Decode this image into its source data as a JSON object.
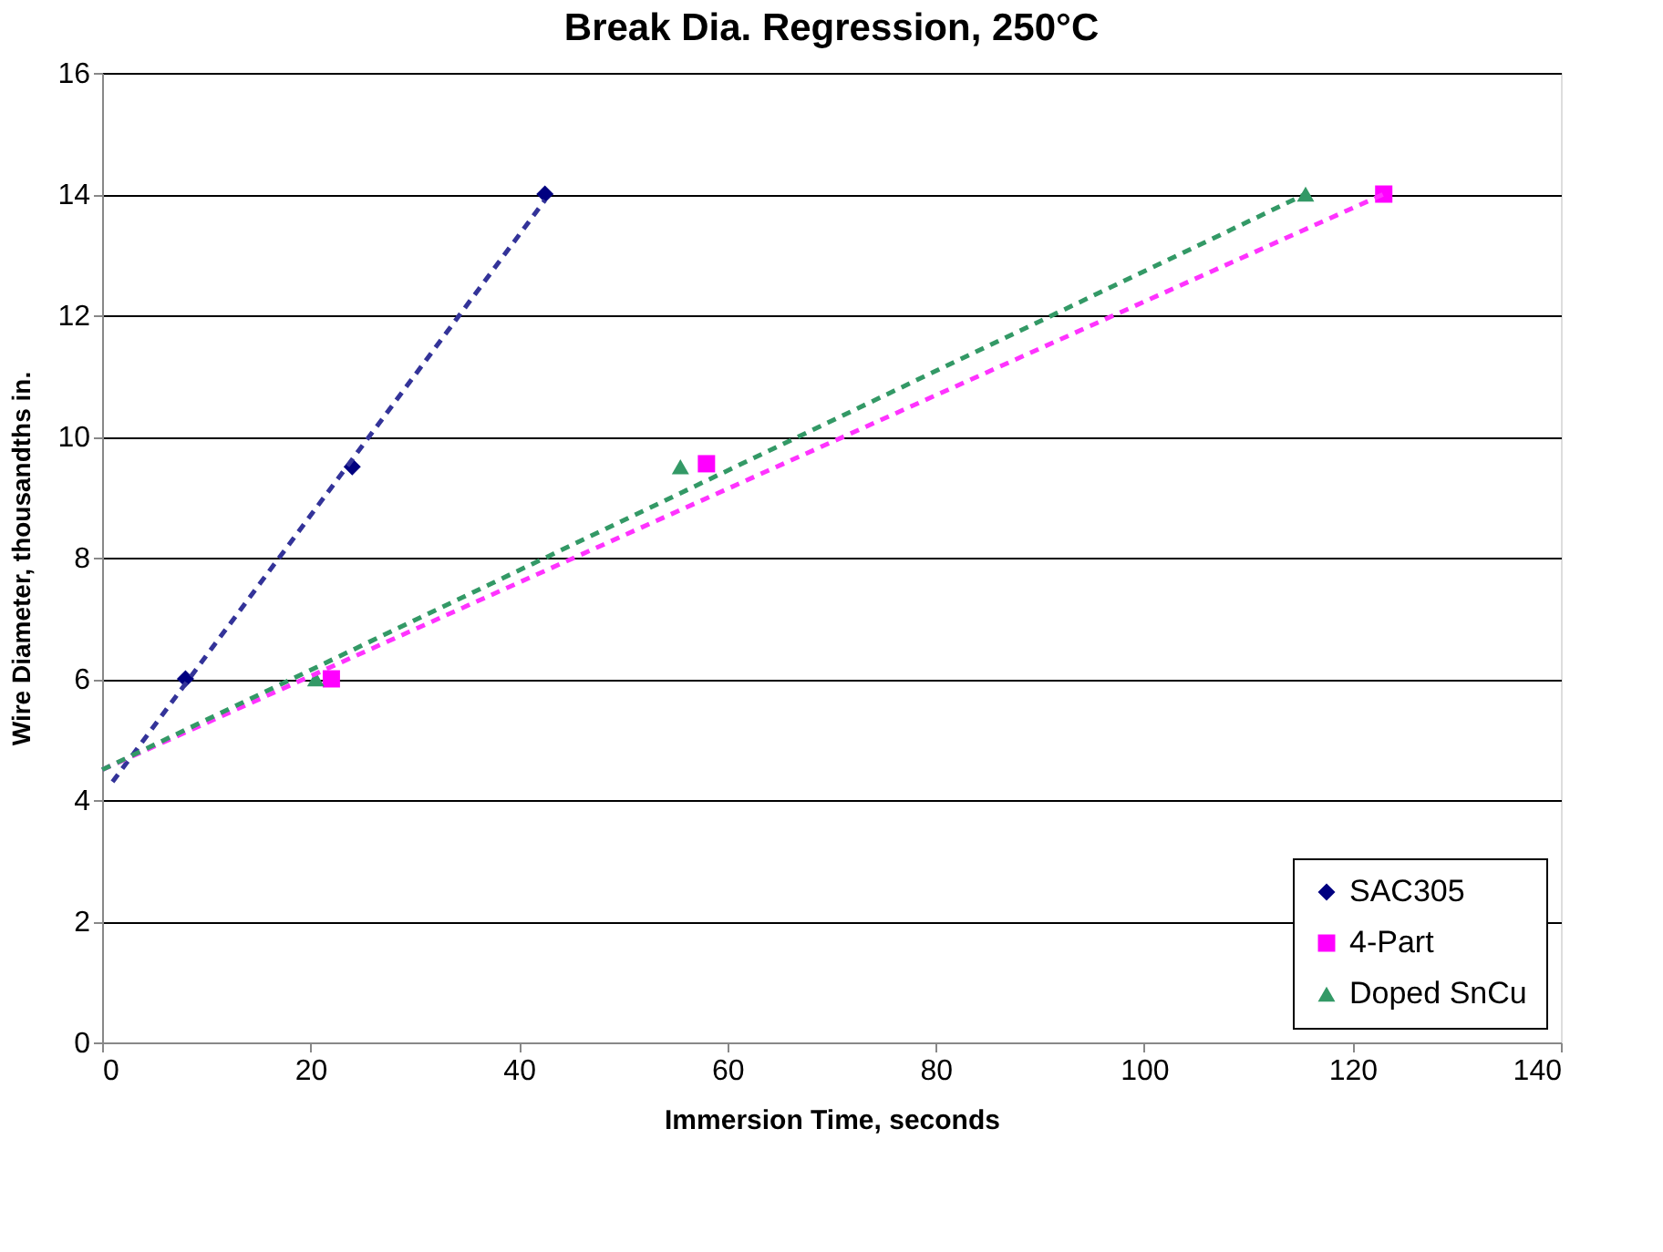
{
  "chart_data": {
    "type": "scatter",
    "title": "Break Dia. Regression, 250°C",
    "xlabel": "Immersion Time, seconds",
    "ylabel": "Wire Diameter, thousandths in.",
    "xlim": [
      0,
      140
    ],
    "xticks": [
      0,
      20,
      40,
      60,
      80,
      100,
      120,
      140
    ],
    "ylim": [
      0,
      16
    ],
    "yticks": [
      0,
      2,
      4,
      6,
      8,
      10,
      12,
      14,
      16
    ],
    "grid": "y",
    "legend": "bottom right",
    "series": [
      {
        "name": "SAC305",
        "color": "#000080",
        "marker": "diamond",
        "x": [
          8,
          24,
          42.5
        ],
        "values": [
          6,
          9.5,
          14
        ]
      },
      {
        "name": "4-Part",
        "color": "#ff00ff",
        "marker": "square",
        "x": [
          22,
          58,
          123
        ],
        "values": [
          6,
          9.55,
          14
        ]
      },
      {
        "name": "Doped SnCu",
        "color": "#339966",
        "marker": "triangle",
        "x": [
          20.5,
          55.5,
          115.5
        ],
        "values": [
          6,
          9.5,
          14
        ]
      },
      {
        "type": "line",
        "color": "#333399",
        "line_style": "dashed",
        "marker": "none",
        "x": [
          1,
          42.5
        ],
        "values": [
          4.3,
          13.9
        ]
      },
      {
        "type": "line",
        "color": "#ff33ff",
        "line_style": "dashed",
        "marker": "none",
        "x": [
          0,
          123
        ],
        "values": [
          4.5,
          14
        ]
      },
      {
        "type": "line",
        "color": "#339966",
        "line_style": "dashed",
        "marker": "none",
        "x": [
          0,
          115.5
        ],
        "values": [
          4.5,
          14
        ]
      }
    ]
  }
}
